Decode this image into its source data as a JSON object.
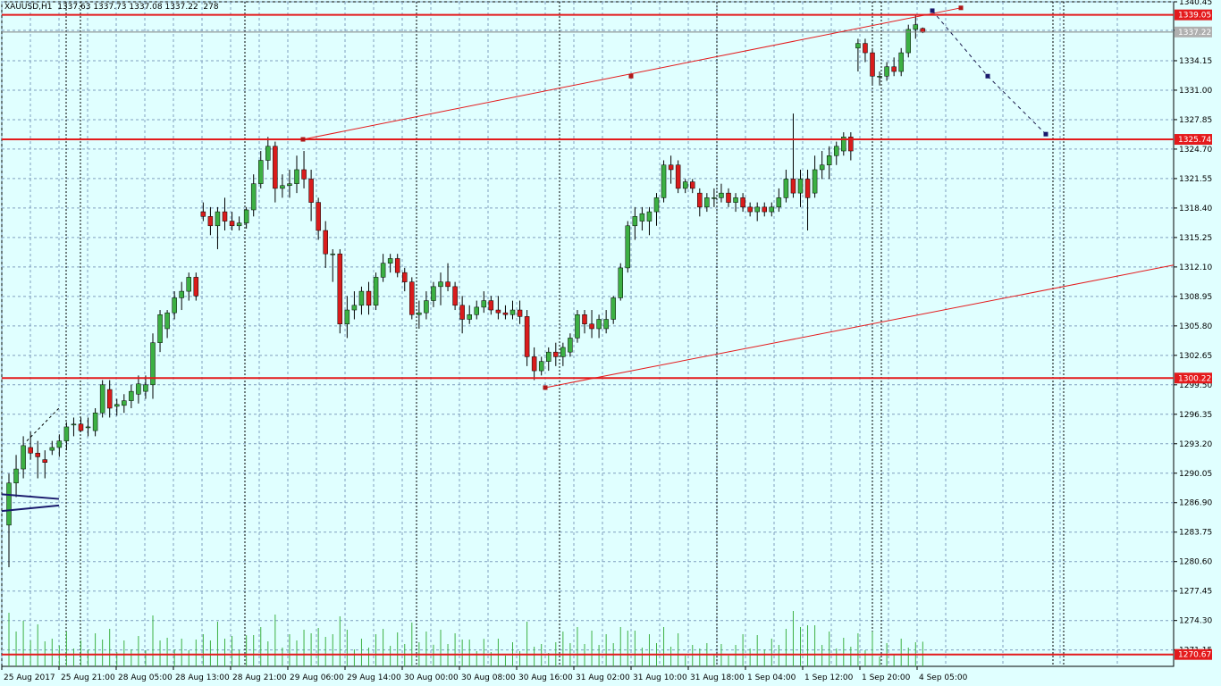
{
  "header": {
    "symbol_tf": "XAUUSD,H1",
    "ohlc": "1337.63 1337.73 1337.08 1337.22",
    "bars": "278"
  },
  "colors": {
    "background": "#e0ffff",
    "grid": "#7f9fbf",
    "bull": "#3cb043",
    "bear": "#d91c1c",
    "wick": "#000000",
    "level_line": "#e41a1c",
    "channel_line": "#e41a1c",
    "forecast_line": "#1a1a4d",
    "volume": "#3cb043",
    "price_badge": "#b0b0b0"
  },
  "chart_data": {
    "type": "candlestick",
    "symbol": "XAUUSD",
    "timeframe": "H1",
    "y_range": [
      1269.4,
      1340.45
    ],
    "y_ticks": [
      "1340.45",
      "1337.40",
      "1334.15",
      "1331.00",
      "1327.85",
      "1324.70",
      "1321.55",
      "1318.40",
      "1315.25",
      "1312.10",
      "1308.95",
      "1305.80",
      "1302.65",
      "1299.50",
      "1296.35",
      "1293.20",
      "1290.05",
      "1286.90",
      "1283.75",
      "1280.60",
      "1277.45",
      "1274.30",
      "1271.15"
    ],
    "x_tick_labels": [
      "25 Aug 2017",
      "25 Aug 21:00",
      "28 Aug 05:00",
      "28 Aug 13:00",
      "28 Aug 21:00",
      "29 Aug 06:00",
      "29 Aug 14:00",
      "30 Aug 00:00",
      "30 Aug 08:00",
      "30 Aug 16:00",
      "31 Aug 02:00",
      "31 Aug 10:00",
      "31 Aug 18:00",
      "1 Sep 04:00",
      "1 Sep 12:00",
      "1 Sep 20:00",
      "4 Sep 05:00"
    ],
    "price_levels": [
      {
        "price": 1339.05,
        "label": "1339.05",
        "color": "#e41a1c"
      },
      {
        "price": 1337.22,
        "label": "1337.22",
        "color": "#b0b0b0",
        "style": "current"
      },
      {
        "price": 1325.74,
        "label": "1325.74",
        "color": "#e41a1c"
      },
      {
        "price": 1300.22,
        "label": "1300.22",
        "color": "#e41a1c"
      },
      {
        "price": 1270.67,
        "label": "1270.67",
        "color": "#e41a1c"
      }
    ],
    "candles": [
      [
        1284.5,
        1290.0,
        1280.0,
        1289.0
      ],
      [
        1289.0,
        1292.0,
        1287.5,
        1290.5
      ],
      [
        1290.5,
        1294.0,
        1289.5,
        1293.0
      ],
      [
        1292.8,
        1294.5,
        1291.5,
        1292.2
      ],
      [
        1292.2,
        1293.5,
        1289.5,
        1291.8
      ],
      [
        1291.5,
        1292.5,
        1289.5,
        1291.2
      ],
      [
        1292.5,
        1293.5,
        1292.0,
        1292.8
      ],
      [
        1292.8,
        1294.2,
        1291.8,
        1293.5
      ],
      [
        1293.5,
        1295.5,
        1292.5,
        1295.0
      ],
      [
        1295.2,
        1296.0,
        1294.0,
        1295.3
      ],
      [
        1295.3,
        1296.0,
        1294.5,
        1294.6
      ],
      [
        1295.0,
        1296.0,
        1294.0,
        1295.0
      ],
      [
        1294.6,
        1297.0,
        1294.0,
        1296.5
      ],
      [
        1296.5,
        1300.0,
        1296.0,
        1299.5
      ],
      [
        1299.0,
        1300.0,
        1296.0,
        1297.0
      ],
      [
        1297.2,
        1298.0,
        1296.2,
        1297.4
      ],
      [
        1297.3,
        1298.5,
        1296.5,
        1297.8
      ],
      [
        1297.8,
        1299.5,
        1297.0,
        1298.8
      ],
      [
        1298.5,
        1300.5,
        1297.5,
        1299.6
      ],
      [
        1298.8,
        1300.5,
        1298.0,
        1299.5
      ],
      [
        1299.5,
        1305.0,
        1298.0,
        1304.0
      ],
      [
        1304.0,
        1307.5,
        1303.0,
        1307.0
      ],
      [
        1305.5,
        1307.5,
        1304.5,
        1307.2
      ],
      [
        1307.2,
        1309.5,
        1306.5,
        1308.8
      ],
      [
        1308.8,
        1310.5,
        1307.5,
        1309.5
      ],
      [
        1309.5,
        1311.5,
        1308.5,
        1311.0
      ],
      [
        1311.0,
        1311.5,
        1308.5,
        1309.0
      ],
      [
        1318.0,
        1319.0,
        1317.0,
        1317.5
      ],
      [
        1317.5,
        1318.5,
        1315.5,
        1316.5
      ],
      [
        1316.5,
        1318.5,
        1314.0,
        1318.0
      ],
      [
        1318.0,
        1319.5,
        1316.0,
        1317.0
      ],
      [
        1317.0,
        1318.0,
        1316.0,
        1316.5
      ],
      [
        1316.5,
        1317.5,
        1316.0,
        1316.8
      ],
      [
        1316.8,
        1318.5,
        1316.2,
        1318.2
      ],
      [
        1318.2,
        1322.0,
        1317.5,
        1321.0
      ],
      [
        1321.0,
        1324.5,
        1320.5,
        1323.5
      ],
      [
        1323.5,
        1326.0,
        1322.5,
        1325.0
      ],
      [
        1325.0,
        1325.5,
        1319.0,
        1320.5
      ],
      [
        1320.5,
        1322.0,
        1319.5,
        1320.8
      ],
      [
        1320.8,
        1322.5,
        1319.5,
        1321.0
      ],
      [
        1321.0,
        1324.0,
        1320.0,
        1322.5
      ],
      [
        1322.5,
        1324.5,
        1320.5,
        1321.5
      ],
      [
        1321.5,
        1322.5,
        1317.0,
        1319.0
      ],
      [
        1319.0,
        1319.5,
        1315.0,
        1316.0
      ],
      [
        1316.0,
        1317.0,
        1312.0,
        1313.5
      ],
      [
        1313.5,
        1314.0,
        1310.5,
        1313.5
      ],
      [
        1313.5,
        1314.0,
        1305.0,
        1306.0
      ],
      [
        1306.0,
        1309.0,
        1304.5,
        1307.5
      ],
      [
        1307.5,
        1309.5,
        1306.5,
        1308.0
      ],
      [
        1308.0,
        1310.0,
        1307.0,
        1309.5
      ],
      [
        1309.5,
        1310.5,
        1307.0,
        1308.0
      ],
      [
        1308.0,
        1311.5,
        1307.5,
        1311.0
      ],
      [
        1311.0,
        1313.5,
        1310.5,
        1312.5
      ],
      [
        1312.5,
        1313.5,
        1311.5,
        1313.0
      ],
      [
        1313.0,
        1313.5,
        1311.0,
        1311.5
      ],
      [
        1311.5,
        1312.0,
        1309.5,
        1310.5
      ],
      [
        1310.5,
        1311.0,
        1306.5,
        1307.0
      ],
      [
        1307.0,
        1308.5,
        1305.5,
        1307.2
      ],
      [
        1307.2,
        1309.5,
        1306.5,
        1308.5
      ],
      [
        1308.5,
        1310.5,
        1307.8,
        1310.0
      ],
      [
        1310.0,
        1311.5,
        1308.0,
        1310.5
      ],
      [
        1310.5,
        1312.5,
        1309.5,
        1310.0
      ],
      [
        1310.0,
        1310.5,
        1307.5,
        1308.0
      ],
      [
        1308.0,
        1309.0,
        1305.0,
        1306.5
      ],
      [
        1306.5,
        1308.0,
        1306.0,
        1307.0
      ],
      [
        1307.0,
        1308.5,
        1306.5,
        1307.8
      ],
      [
        1307.8,
        1309.5,
        1307.2,
        1308.5
      ],
      [
        1308.5,
        1309.0,
        1307.0,
        1307.5
      ],
      [
        1307.5,
        1309.0,
        1306.5,
        1307.2
      ],
      [
        1307.2,
        1308.0,
        1306.5,
        1307.0
      ],
      [
        1307.0,
        1308.5,
        1306.5,
        1307.5
      ],
      [
        1307.5,
        1308.5,
        1306.0,
        1306.8
      ],
      [
        1306.8,
        1307.5,
        1301.5,
        1302.5
      ],
      [
        1302.5,
        1303.5,
        1300.0,
        1301.0
      ],
      [
        1301.0,
        1302.5,
        1300.5,
        1302.0
      ],
      [
        1302.0,
        1303.5,
        1301.0,
        1303.0
      ],
      [
        1303.0,
        1304.0,
        1301.5,
        1302.5
      ],
      [
        1302.5,
        1304.0,
        1301.5,
        1303.5
      ],
      [
        1303.0,
        1305.0,
        1302.5,
        1304.5
      ],
      [
        1304.5,
        1307.5,
        1304.0,
        1307.0
      ],
      [
        1307.0,
        1307.5,
        1305.0,
        1306.0
      ],
      [
        1306.0,
        1307.5,
        1304.5,
        1305.5
      ],
      [
        1305.5,
        1307.0,
        1304.5,
        1306.5
      ],
      [
        1305.5,
        1307.5,
        1305.0,
        1306.5
      ],
      [
        1306.5,
        1309.0,
        1306.0,
        1308.8
      ],
      [
        1308.8,
        1312.5,
        1308.5,
        1312.0
      ],
      [
        1312.0,
        1317.0,
        1311.5,
        1316.5
      ],
      [
        1316.5,
        1318.5,
        1315.0,
        1317.5
      ],
      [
        1317.0,
        1318.5,
        1316.0,
        1317.8
      ],
      [
        1317.0,
        1318.5,
        1315.5,
        1318.0
      ],
      [
        1318.0,
        1320.0,
        1316.5,
        1319.5
      ],
      [
        1319.5,
        1323.5,
        1319.0,
        1323.0
      ],
      [
        1323.0,
        1324.0,
        1321.0,
        1322.5
      ],
      [
        1323.0,
        1323.5,
        1320.0,
        1320.5
      ],
      [
        1320.5,
        1321.5,
        1320.0,
        1321.2
      ],
      [
        1321.2,
        1321.5,
        1320.0,
        1320.5
      ],
      [
        1320.0,
        1320.5,
        1317.5,
        1318.5
      ],
      [
        1318.5,
        1320.0,
        1318.0,
        1319.5
      ],
      [
        1319.5,
        1320.5,
        1318.5,
        1319.5
      ],
      [
        1319.5,
        1321.0,
        1319.0,
        1320.0
      ],
      [
        1320.0,
        1320.5,
        1318.5,
        1319.0
      ],
      [
        1319.0,
        1320.0,
        1318.0,
        1319.5
      ],
      [
        1319.5,
        1320.0,
        1318.0,
        1318.5
      ],
      [
        1318.5,
        1319.0,
        1317.5,
        1318.0
      ],
      [
        1318.0,
        1319.0,
        1317.0,
        1318.5
      ],
      [
        1318.5,
        1319.0,
        1317.5,
        1318.0
      ],
      [
        1318.0,
        1319.0,
        1317.5,
        1318.5
      ],
      [
        1318.5,
        1320.5,
        1318.0,
        1319.5
      ],
      [
        1319.5,
        1322.5,
        1319.0,
        1321.5
      ],
      [
        1321.5,
        1328.5,
        1319.5,
        1320.0
      ],
      [
        1320.0,
        1322.5,
        1318.5,
        1321.5
      ],
      [
        1321.5,
        1322.5,
        1316.0,
        1319.5
      ],
      [
        1320.0,
        1324.0,
        1319.5,
        1322.5
      ],
      [
        1322.5,
        1324.5,
        1321.5,
        1323.0
      ],
      [
        1323.0,
        1325.0,
        1321.5,
        1324.0
      ],
      [
        1324.0,
        1325.5,
        1323.0,
        1325.0
      ],
      [
        1324.5,
        1326.5,
        1324.0,
        1326.0
      ],
      [
        1326.0,
        1326.5,
        1323.5,
        1324.5
      ],
      [
        1335.5,
        1336.5,
        1333.0,
        1336.0
      ],
      [
        1336.0,
        1336.5,
        1334.0,
        1335.0
      ],
      [
        1335.0,
        1335.5,
        1331.5,
        1332.5
      ],
      [
        1332.5,
        1333.0,
        1331.5,
        1332.5
      ],
      [
        1332.5,
        1334.0,
        1332.0,
        1333.5
      ],
      [
        1333.5,
        1334.5,
        1332.5,
        1333.0
      ],
      [
        1333.0,
        1335.5,
        1332.5,
        1335.0
      ],
      [
        1335.0,
        1338.0,
        1334.5,
        1337.5
      ],
      [
        1337.5,
        1339.0,
        1336.5,
        1338.0
      ],
      [
        1337.6,
        1337.7,
        1337.1,
        1337.2
      ]
    ],
    "trend_lines": [
      {
        "from": [
          339,
          1325.74
        ],
        "to": [
          1075,
          1339.8
        ]
      },
      {
        "from": [
          610,
          1299.2
        ],
        "to": [
          1313,
          1312.3
        ]
      }
    ]
  }
}
